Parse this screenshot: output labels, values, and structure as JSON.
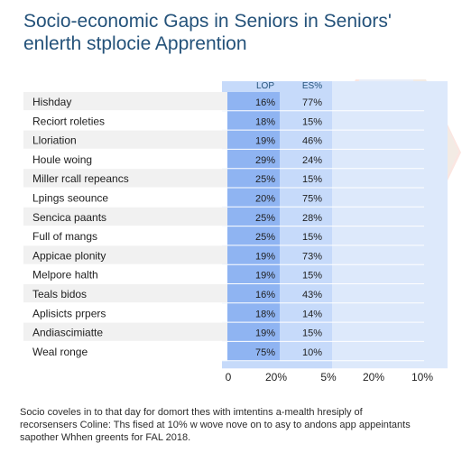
{
  "title_lines": [
    "Socio-economic Gaps in Seniors in Seniors'",
    "enlerth stplocie Apprention"
  ],
  "chart_data": {
    "type": "table",
    "columns": [
      "LOP",
      "ES%"
    ],
    "rows": [
      {
        "label": "Hishday",
        "values": [
          16,
          77
        ]
      },
      {
        "label": "Reciort roleties",
        "values": [
          18,
          15
        ]
      },
      {
        "label": "Lloriation",
        "values": [
          19,
          46
        ]
      },
      {
        "label": "Houle woing",
        "values": [
          29,
          24
        ]
      },
      {
        "label": "Miller rcall repeancs",
        "values": [
          25,
          15
        ]
      },
      {
        "label": "Lpings seounce",
        "values": [
          20,
          75
        ]
      },
      {
        "label": "Sencica paants",
        "values": [
          25,
          28
        ]
      },
      {
        "label": "Full of mangs",
        "values": [
          25,
          15
        ]
      },
      {
        "label": "Appicae plonity",
        "values": [
          19,
          73
        ]
      },
      {
        "label": "Melpore halth",
        "values": [
          19,
          15
        ]
      },
      {
        "label": "Teals bidos",
        "values": [
          16,
          43
        ]
      },
      {
        "label": "Aplisicts prpers",
        "values": [
          18,
          14
        ]
      },
      {
        "label": "Andiascimiatte",
        "values": [
          19,
          15
        ]
      },
      {
        "label": "Weal ronge",
        "values": [
          75,
          10
        ]
      }
    ],
    "x_tick_labels": [
      "0",
      "20%",
      "5%",
      "20%",
      "10%"
    ],
    "colors": {
      "band_light": "#dde9fb",
      "band_mid": "#c6dafa",
      "column_lop": "#8fb4f2",
      "row_odd": "#f1f1f1",
      "row_even": "#ffffff",
      "title": "#24527a",
      "hexagon_pink": "#fbe6e1"
    }
  },
  "footnote_lines": [
    "Socio coveles in to that day for domort thes with imtentins a-mealth hresiply of",
    "recorsensers Coline: Ths fised at 10% w wove nove on to asy to andons app appeintants",
    "sapother Whhen greents for FAL 2018."
  ]
}
